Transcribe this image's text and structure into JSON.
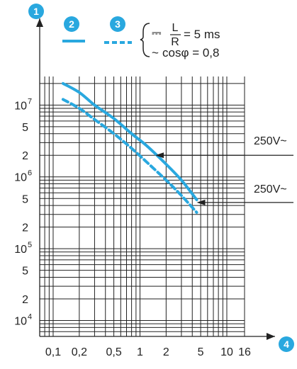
{
  "colors": {
    "accent": "#29a8df",
    "grid": "#222222",
    "text": "#222222"
  },
  "markers": {
    "y_axis": "1",
    "series_solid": "2",
    "series_dashed": "3",
    "x_axis": "4"
  },
  "legend": {
    "dc_symbol": "⎓",
    "dc_lhs_num": "L",
    "dc_lhs_den": "R",
    "dc_rhs": "= 5 ms",
    "ac_symbol": "~",
    "ac_text": "cosφ = 0,8"
  },
  "chart_data": {
    "type": "line",
    "x_scale": "log",
    "y_scale": "log",
    "xlim": [
      0.07,
      16
    ],
    "ylim": [
      6000,
      25000000
    ],
    "grid": true,
    "x_ticks": [
      {
        "value": 0.1,
        "label": "0,1"
      },
      {
        "value": 0.2,
        "label": "0,2"
      },
      {
        "value": 0.5,
        "label": "0,5"
      },
      {
        "value": 1,
        "label": "1"
      },
      {
        "value": 2,
        "label": "2"
      },
      {
        "value": 5,
        "label": "5"
      },
      {
        "value": 10,
        "label": "10"
      },
      {
        "value": 16,
        "label": "16"
      }
    ],
    "x_grid": [
      0.07,
      0.08,
      0.09,
      0.1,
      0.2,
      0.3,
      0.4,
      0.5,
      0.6,
      0.7,
      0.8,
      0.9,
      1,
      2,
      3,
      4,
      5,
      6,
      7,
      8,
      9,
      10,
      16
    ],
    "y_ticks": [
      {
        "value": 10000,
        "mantissa": "10",
        "exp": "4"
      },
      {
        "value": 20000,
        "mantissa": "2",
        "exp": ""
      },
      {
        "value": 50000,
        "mantissa": "5",
        "exp": ""
      },
      {
        "value": 100000,
        "mantissa": "10",
        "exp": "5"
      },
      {
        "value": 200000,
        "mantissa": "2",
        "exp": ""
      },
      {
        "value": 500000,
        "mantissa": "5",
        "exp": ""
      },
      {
        "value": 1000000,
        "mantissa": "10",
        "exp": "6"
      },
      {
        "value": 2000000,
        "mantissa": "2",
        "exp": ""
      },
      {
        "value": 5000000,
        "mantissa": "5",
        "exp": ""
      },
      {
        "value": 10000000,
        "mantissa": "10",
        "exp": "7"
      }
    ],
    "y_grid": [
      6000,
      7000,
      8000,
      9000,
      10000,
      20000,
      30000,
      40000,
      50000,
      60000,
      70000,
      80000,
      90000,
      100000,
      200000,
      300000,
      400000,
      500000,
      600000,
      700000,
      800000,
      900000,
      1000000,
      2000000,
      3000000,
      4000000,
      5000000,
      6000000,
      7000000,
      8000000,
      9000000,
      10000000,
      20000000
    ],
    "series": [
      {
        "marker": "2",
        "style": "solid",
        "x": [
          0.13,
          0.2,
          0.3,
          0.5,
          0.8,
          1.2,
          2,
          3,
          4.5
        ],
        "y": [
          20000000,
          15000000,
          10000000,
          6500000,
          4000000,
          2700000,
          1500000,
          900000,
          480000
        ]
      },
      {
        "marker": "3",
        "style": "dashed",
        "x": [
          0.13,
          0.2,
          0.3,
          0.5,
          0.8,
          1.2,
          2,
          3,
          4.5
        ],
        "y": [
          12000000,
          9000000,
          6300000,
          4000000,
          2500000,
          1600000,
          900000,
          550000,
          320000
        ]
      }
    ],
    "annotations": [
      {
        "text": "250V~",
        "x": 1.5,
        "y": 2000000
      },
      {
        "text": "250V~",
        "x": 4.5,
        "y": 440000
      }
    ]
  }
}
